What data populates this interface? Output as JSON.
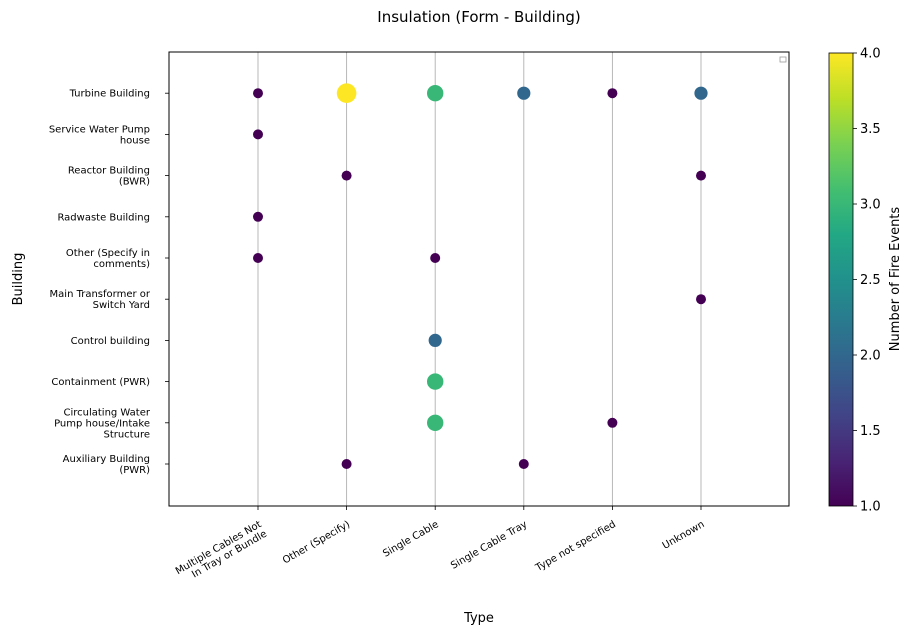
{
  "chart_data": {
    "type": "scatter",
    "title": "Insulation (Form - Building)",
    "xlabel": "Type",
    "ylabel": "Building",
    "x_categories": [
      "Multiple Cables Not\nIn Tray or Bundle",
      "Other (Specify)",
      "Single Cable",
      "Single Cable Tray",
      "Type not specified",
      "Unknown"
    ],
    "y_categories": [
      "Auxiliary Building\n(PWR)",
      "Circulating Water\nPump house/Intake\nStructure",
      "Containment (PWR)",
      "Control building",
      "Main Transformer or\nSwitch Yard",
      "Other (Specify in\ncomments)",
      "Radwaste Building",
      "Reactor Building\n(BWR)",
      "Service Water Pump\nhouse",
      "Turbine Building"
    ],
    "points": [
      {
        "x": "Multiple Cables Not\nIn Tray or Bundle",
        "y": "Turbine Building",
        "value": 1
      },
      {
        "x": "Multiple Cables Not\nIn Tray or Bundle",
        "y": "Service Water Pump\nhouse",
        "value": 1
      },
      {
        "x": "Multiple Cables Not\nIn Tray or Bundle",
        "y": "Radwaste Building",
        "value": 1
      },
      {
        "x": "Multiple Cables Not\nIn Tray or Bundle",
        "y": "Other (Specify in\ncomments)",
        "value": 1
      },
      {
        "x": "Other (Specify)",
        "y": "Turbine Building",
        "value": 4
      },
      {
        "x": "Other (Specify)",
        "y": "Reactor Building\n(BWR)",
        "value": 1
      },
      {
        "x": "Other (Specify)",
        "y": "Auxiliary Building\n(PWR)",
        "value": 1
      },
      {
        "x": "Single Cable",
        "y": "Turbine Building",
        "value": 3
      },
      {
        "x": "Single Cable",
        "y": "Other (Specify in\ncomments)",
        "value": 1
      },
      {
        "x": "Single Cable",
        "y": "Control building",
        "value": 2
      },
      {
        "x": "Single Cable",
        "y": "Containment (PWR)",
        "value": 3
      },
      {
        "x": "Single Cable",
        "y": "Circulating Water\nPump house/Intake\nStructure",
        "value": 3
      },
      {
        "x": "Single Cable Tray",
        "y": "Turbine Building",
        "value": 2
      },
      {
        "x": "Single Cable Tray",
        "y": "Auxiliary Building\n(PWR)",
        "value": 1
      },
      {
        "x": "Type not specified",
        "y": "Turbine Building",
        "value": 1
      },
      {
        "x": "Type not specified",
        "y": "Circulating Water\nPump house/Intake\nStructure",
        "value": 1
      },
      {
        "x": "Unknown",
        "y": "Turbine Building",
        "value": 2
      },
      {
        "x": "Unknown",
        "y": "Reactor Building\n(BWR)",
        "value": 1
      },
      {
        "x": "Unknown",
        "y": "Main Transformer or\nSwitch Yard",
        "value": 1
      }
    ],
    "colorbar": {
      "label": "Number of Fire Events",
      "range": [
        1.0,
        4.0
      ],
      "ticks": [
        "1.0",
        "1.5",
        "2.0",
        "2.5",
        "3.0",
        "3.5",
        "4.0"
      ],
      "colormap": "viridis"
    },
    "grid": "vertical",
    "legend": "top-right"
  }
}
